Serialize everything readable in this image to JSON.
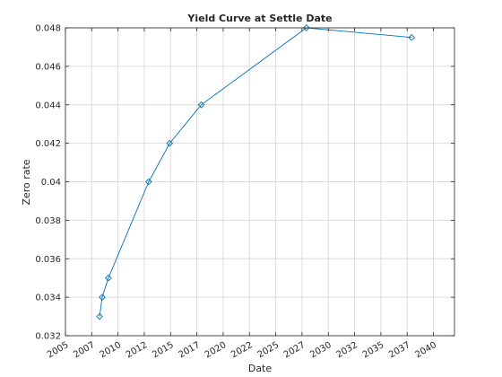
{
  "chart_data": {
    "type": "line",
    "title": "Yield Curve at Settle Date",
    "xlabel": "Date",
    "ylabel": "Zero rate",
    "x_axis_type": "date",
    "xlim": [
      "2005-01-01",
      "2041-12-31"
    ],
    "ylim": [
      0.032,
      0.048
    ],
    "x_tick_labels": [
      {
        "date": "2005-01-01",
        "label": "2005"
      },
      {
        "date": "2007-07-01",
        "label": "2007"
      },
      {
        "date": "2010-01-01",
        "label": "2010"
      },
      {
        "date": "2012-07-01",
        "label": "2012"
      },
      {
        "date": "2015-01-01",
        "label": "2015"
      },
      {
        "date": "2017-07-01",
        "label": "2017"
      },
      {
        "date": "2020-01-01",
        "label": "2020"
      },
      {
        "date": "2022-07-01",
        "label": "2022"
      },
      {
        "date": "2025-01-01",
        "label": "2025"
      },
      {
        "date": "2027-07-01",
        "label": "2027"
      },
      {
        "date": "2030-01-01",
        "label": "2030"
      },
      {
        "date": "2032-07-01",
        "label": "2032"
      },
      {
        "date": "2035-01-01",
        "label": "2035"
      },
      {
        "date": "2037-07-01",
        "label": "2037"
      },
      {
        "date": "2040-01-01",
        "label": "2040"
      }
    ],
    "y_ticks": [
      0.032,
      0.034,
      0.036,
      0.038,
      0.04,
      0.042,
      0.044,
      0.046,
      0.048
    ],
    "y_tick_labels": [
      "0.032",
      "0.034",
      "0.036",
      "0.038",
      "0.04",
      "0.042",
      "0.044",
      "0.046",
      "0.048"
    ],
    "grid": true,
    "series": [
      {
        "color": "#0072bd",
        "marker": "diamond",
        "points": [
          {
            "x": "2008-04-01",
            "y": 0.033
          },
          {
            "x": "2008-07-01",
            "y": 0.034
          },
          {
            "x": "2009-02-01",
            "y": 0.035
          },
          {
            "x": "2012-12-01",
            "y": 0.04
          },
          {
            "x": "2014-12-01",
            "y": 0.042
          },
          {
            "x": "2017-12-01",
            "y": 0.044
          },
          {
            "x": "2027-12-01",
            "y": 0.048
          },
          {
            "x": "2037-12-01",
            "y": 0.0475
          }
        ]
      }
    ]
  }
}
